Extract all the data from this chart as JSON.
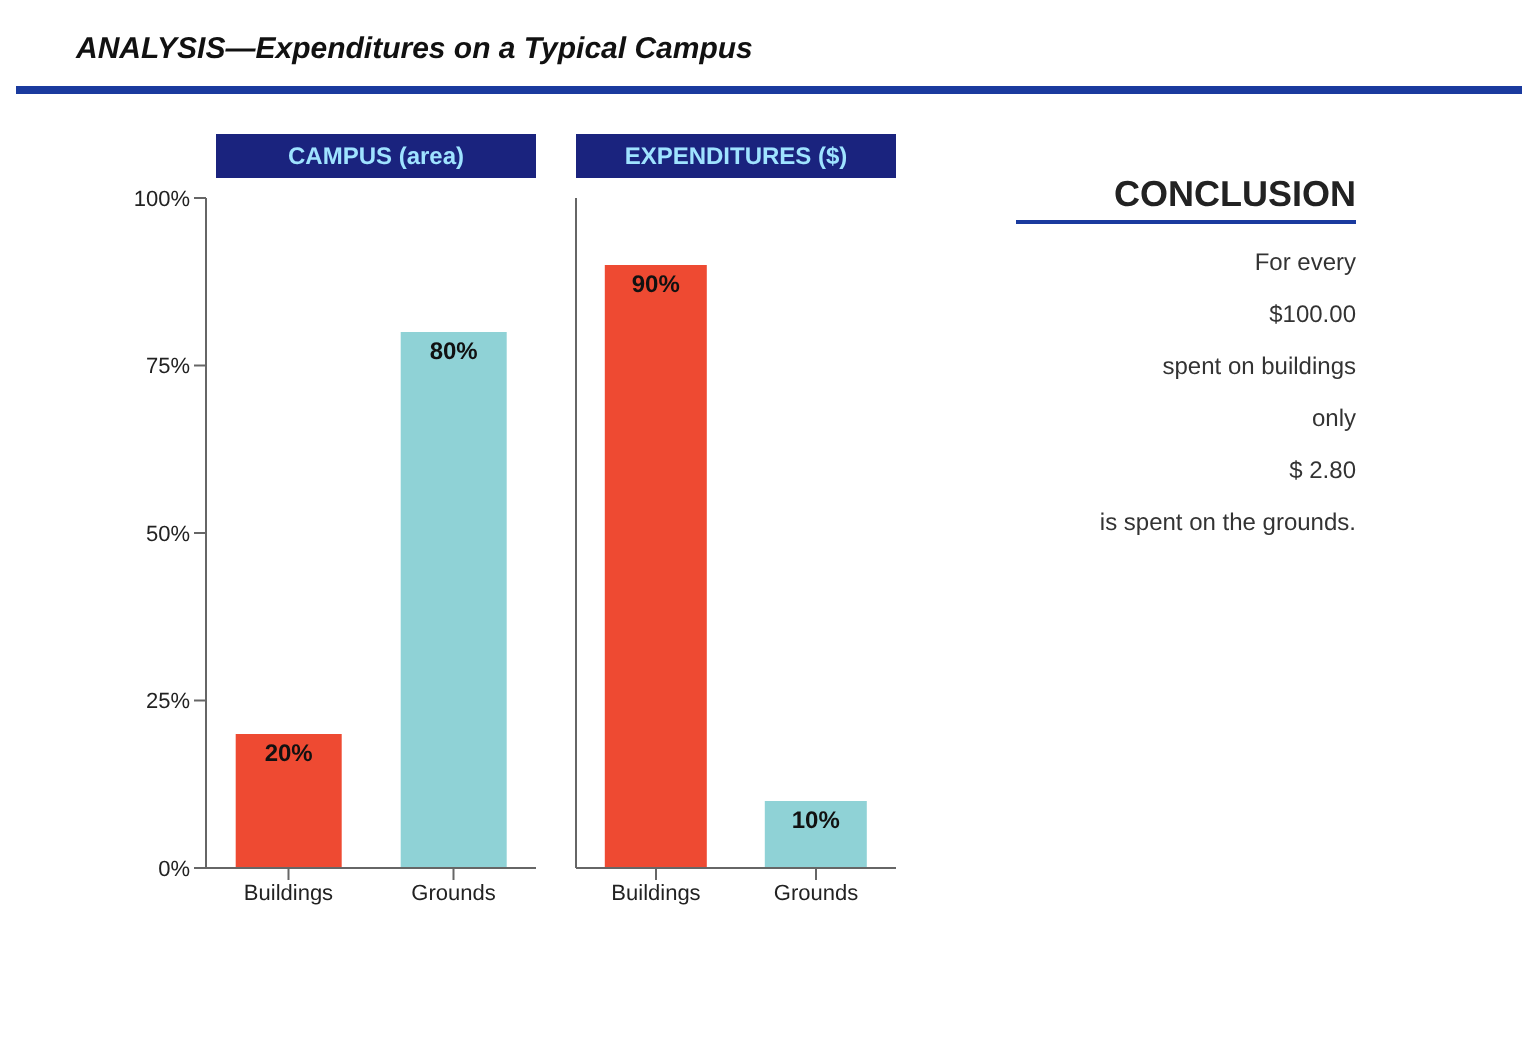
{
  "chart_data": [
    {
      "type": "bar",
      "title": "ANALYSIS—Expenditures on a Typical Campus",
      "subtitle": "CAMPUS (area)",
      "categories": [
        "Buildings",
        "Grounds"
      ],
      "values": [
        20,
        80
      ],
      "colors": [
        "#ee4a32",
        "#8fd2d6"
      ],
      "value_labels": [
        "20%",
        "80%"
      ],
      "ylim": [
        0,
        100
      ],
      "yticks": [
        {
          "value": 0,
          "label": "0%"
        },
        {
          "value": 25,
          "label": "25%"
        },
        {
          "value": 50,
          "label": "50%"
        },
        {
          "value": 75,
          "label": "75%"
        },
        {
          "value": 100,
          "label": "100%"
        }
      ],
      "grid": false
    },
    {
      "type": "bar",
      "subtitle": "EXPENDITURES ($)",
      "categories": [
        "Buildings",
        "Grounds"
      ],
      "values": [
        90,
        10
      ],
      "colors": [
        "#ee4a32",
        "#8fd2d6"
      ],
      "value_labels": [
        "90%",
        "10%"
      ],
      "ylim": [
        0,
        100
      ],
      "tick_labels": "x",
      "grid": false
    },
    {
      "type": "other",
      "title": "CONCLUSION",
      "annotations": [
        "For every",
        "$100.00",
        "spent on buildings",
        "only",
        "$ 2.80",
        "is spent on the grounds."
      ]
    }
  ]
}
